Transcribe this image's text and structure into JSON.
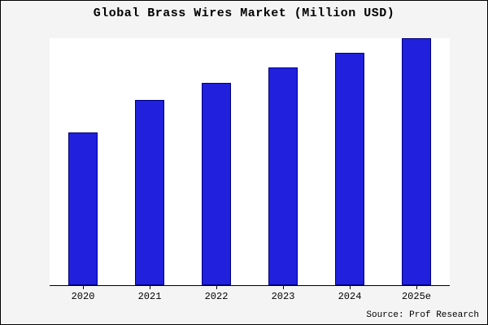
{
  "title": "Global Brass Wires Market (Million USD)",
  "source": "Source: Prof Research",
  "colors": {
    "bar_fill": "#2020dd",
    "bar_border": "#000080",
    "outer_background": "#f4f4f4",
    "plot_background": "#ffffff",
    "axis": "#000000"
  },
  "chart_data": {
    "type": "bar",
    "categories": [
      "2020",
      "2021",
      "2022",
      "2023",
      "2024",
      "2025e"
    ],
    "values": [
      62,
      75,
      82,
      88,
      94,
      100
    ],
    "title": "Global Brass Wires Market (Million USD)",
    "xlabel": "",
    "ylabel": "",
    "ylim": [
      0,
      100
    ],
    "grid": false,
    "legend": false,
    "value_units": "relative index (no y-axis labels shown; max bar = 100)"
  }
}
